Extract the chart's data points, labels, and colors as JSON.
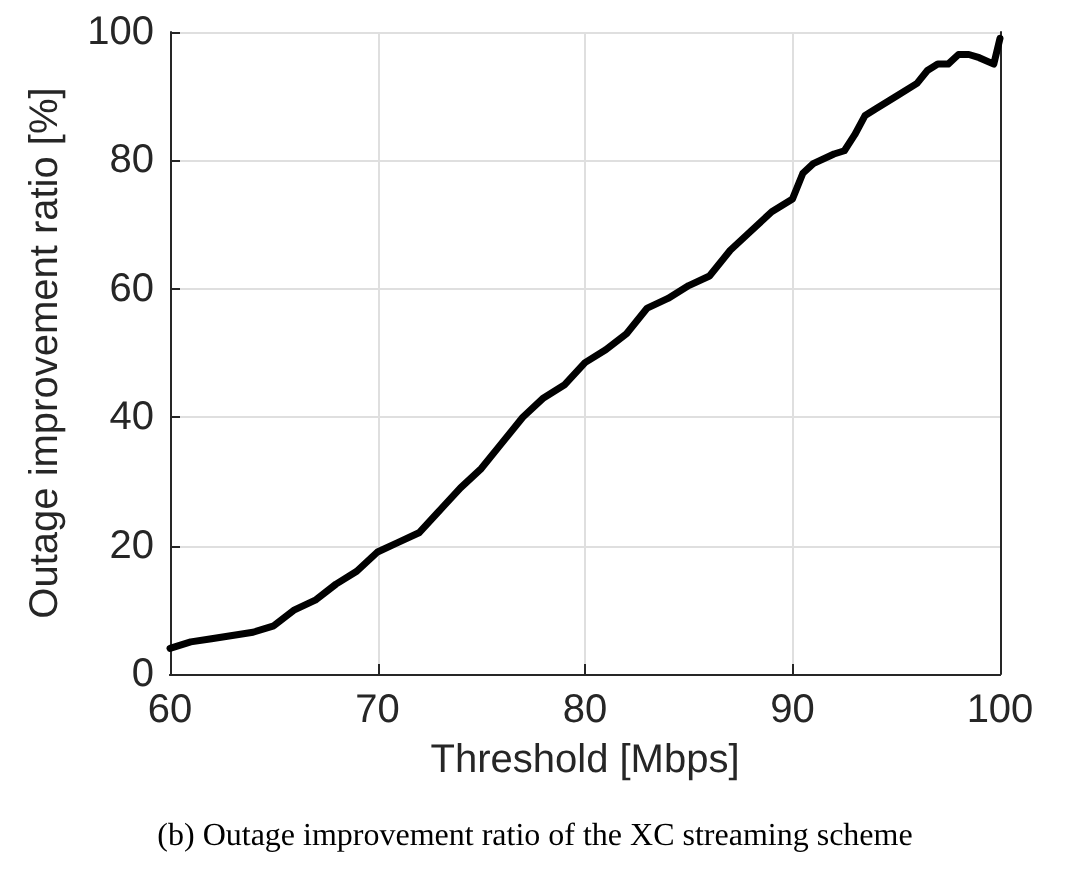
{
  "chart_data": {
    "type": "line",
    "xlabel": "Threshold [Mbps]",
    "ylabel": "Outage improvement ratio [%]",
    "annotations": [
      "(b) Outage improvement ratio of the XC streaming scheme"
    ],
    "series": [
      {
        "color": "#000000",
        "x": [
          60,
          61,
          62,
          63,
          64,
          65,
          66,
          67,
          68,
          69,
          70,
          71,
          72,
          73,
          74,
          75,
          76,
          77,
          78,
          79,
          80,
          81,
          82,
          83,
          84,
          85,
          86,
          87,
          88,
          89,
          90,
          90.5,
          91,
          92,
          92.5,
          93,
          93.5,
          94,
          95,
          96,
          96.5,
          97,
          97.5,
          98,
          98.5,
          99,
          99.7,
          100
        ],
        "values": [
          4,
          5,
          5.5,
          6,
          6.5,
          7.5,
          10,
          11.5,
          14,
          16,
          19,
          20.5,
          22,
          25.5,
          29,
          32,
          36,
          40,
          43,
          45,
          48.5,
          50.5,
          53,
          57,
          58.5,
          60.5,
          62,
          66,
          69,
          72,
          74,
          78,
          79.5,
          81,
          81.5,
          84,
          87,
          88,
          90,
          92,
          94,
          95,
          95,
          96.5,
          96.5,
          96,
          95,
          99
        ]
      }
    ],
    "xlim": [
      60,
      100
    ],
    "xticks": [
      60,
      70,
      80,
      90,
      100
    ],
    "ylim": [
      0,
      100
    ],
    "yticks": [
      0,
      20,
      40,
      60,
      80,
      100
    ],
    "grid": true,
    "line_style": "solid",
    "marker": "none"
  }
}
